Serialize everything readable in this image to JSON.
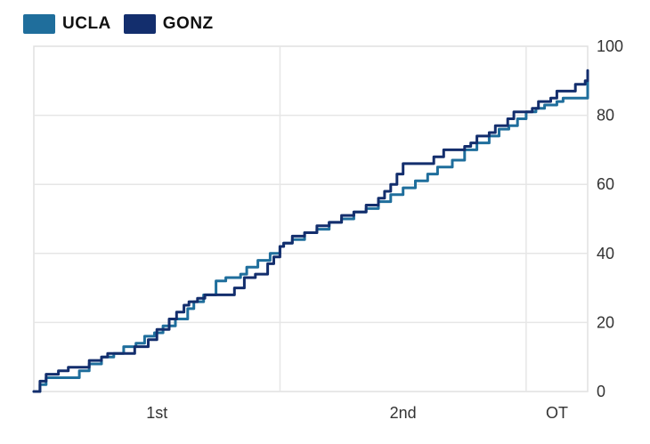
{
  "chart_data": {
    "type": "line",
    "title": "",
    "xlabel": "",
    "ylabel": "",
    "x_unit": "game minutes",
    "xlim": [
      0,
      45
    ],
    "ylim": [
      0,
      100
    ],
    "y_ticks": [
      0,
      20,
      40,
      60,
      80,
      100
    ],
    "y_axis_side": "right",
    "x_period_labels": [
      {
        "label": "1st",
        "x": 10
      },
      {
        "label": "2nd",
        "x": 30
      },
      {
        "label": "OT",
        "x": 42.5
      }
    ],
    "x_dividers": [
      20,
      40
    ],
    "grid": true,
    "legend_position": "top-left",
    "series": [
      {
        "name": "UCLA",
        "color": "#1f6e9c",
        "points": [
          [
            0,
            0
          ],
          [
            0.5,
            2
          ],
          [
            1,
            4
          ],
          [
            2.6,
            4
          ],
          [
            3.7,
            6
          ],
          [
            4.5,
            8
          ],
          [
            5.5,
            10
          ],
          [
            6.5,
            11
          ],
          [
            7.3,
            13
          ],
          [
            8.3,
            14
          ],
          [
            9,
            16
          ],
          [
            9.8,
            17
          ],
          [
            10.5,
            19
          ],
          [
            11.5,
            21
          ],
          [
            12.5,
            24
          ],
          [
            13,
            26
          ],
          [
            13.8,
            28
          ],
          [
            14.8,
            32
          ],
          [
            15.6,
            33
          ],
          [
            16.8,
            34
          ],
          [
            17.3,
            36
          ],
          [
            18.2,
            38
          ],
          [
            19.2,
            40
          ],
          [
            20,
            42
          ],
          [
            20.3,
            43
          ],
          [
            21,
            44
          ],
          [
            22,
            46
          ],
          [
            23,
            47
          ],
          [
            24,
            49
          ],
          [
            25,
            50
          ],
          [
            26,
            52
          ],
          [
            27,
            53
          ],
          [
            28,
            55
          ],
          [
            29,
            57
          ],
          [
            30,
            59
          ],
          [
            31,
            61
          ],
          [
            32,
            63
          ],
          [
            32.8,
            65
          ],
          [
            34,
            67
          ],
          [
            35,
            70
          ],
          [
            36,
            72
          ],
          [
            37,
            74
          ],
          [
            37.8,
            76
          ],
          [
            38.6,
            77
          ],
          [
            39.3,
            79
          ],
          [
            40,
            81
          ],
          [
            40.8,
            82
          ],
          [
            41.5,
            83
          ],
          [
            42.5,
            84
          ],
          [
            43,
            85
          ],
          [
            44,
            85
          ],
          [
            45,
            90
          ]
        ]
      },
      {
        "name": "GONZ",
        "color": "#132e6d",
        "points": [
          [
            0,
            0
          ],
          [
            0.5,
            3
          ],
          [
            1,
            5
          ],
          [
            2,
            6
          ],
          [
            2.8,
            7
          ],
          [
            4,
            7
          ],
          [
            4.5,
            9
          ],
          [
            5.5,
            10
          ],
          [
            6,
            11
          ],
          [
            7.3,
            11
          ],
          [
            8.2,
            13
          ],
          [
            9.3,
            15
          ],
          [
            10,
            18
          ],
          [
            11,
            21
          ],
          [
            11.6,
            23
          ],
          [
            12.2,
            25
          ],
          [
            12.6,
            26
          ],
          [
            13.3,
            27
          ],
          [
            13.9,
            28
          ],
          [
            15,
            28
          ],
          [
            15.4,
            28
          ],
          [
            16.3,
            30
          ],
          [
            17.1,
            33
          ],
          [
            18,
            34
          ],
          [
            19,
            37
          ],
          [
            19.5,
            39
          ],
          [
            20,
            42
          ],
          [
            20.3,
            43
          ],
          [
            21,
            45
          ],
          [
            22,
            46
          ],
          [
            23,
            48
          ],
          [
            24,
            49
          ],
          [
            25,
            51
          ],
          [
            26,
            52
          ],
          [
            27,
            54
          ],
          [
            28,
            56
          ],
          [
            28.5,
            58
          ],
          [
            29,
            60
          ],
          [
            29.5,
            63
          ],
          [
            30,
            66
          ],
          [
            31,
            66
          ],
          [
            32,
            66
          ],
          [
            32.5,
            68
          ],
          [
            33.3,
            70
          ],
          [
            34,
            70
          ],
          [
            35,
            71
          ],
          [
            35.5,
            72
          ],
          [
            36,
            74
          ],
          [
            37,
            75
          ],
          [
            37.5,
            77
          ],
          [
            38.5,
            79
          ],
          [
            39,
            81
          ],
          [
            40,
            81
          ],
          [
            40.5,
            82
          ],
          [
            41,
            84
          ],
          [
            42,
            85
          ],
          [
            42.5,
            87
          ],
          [
            43.5,
            87
          ],
          [
            44,
            89
          ],
          [
            44.8,
            90
          ],
          [
            45,
            93
          ]
        ]
      }
    ]
  }
}
